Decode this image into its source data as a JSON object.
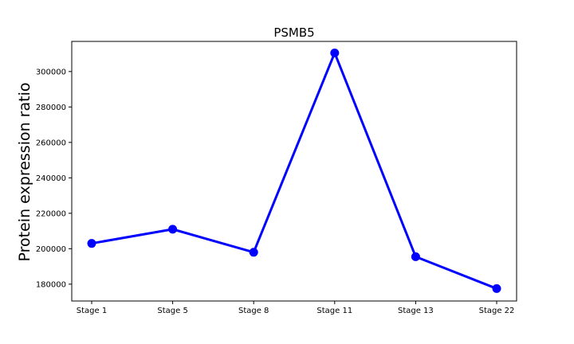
{
  "chart_data": {
    "type": "line",
    "title": "PSMB5",
    "xlabel": "",
    "ylabel": "Protein expression ratio",
    "categories": [
      "Stage 1",
      "Stage 5",
      "Stage 8",
      "Stage 11",
      "Stage 13",
      "Stage 22"
    ],
    "series": [
      {
        "values": [
          203000,
          211000,
          198000,
          310500,
          195500,
          177500
        ]
      }
    ],
    "ylim": [
      170500,
      317000
    ],
    "yticks": [
      180000,
      200000,
      220000,
      240000,
      260000,
      280000,
      300000
    ],
    "grid": false,
    "colors": {
      "line": "#0000ff",
      "axes": "#000000",
      "background": "#ffffff"
    }
  }
}
